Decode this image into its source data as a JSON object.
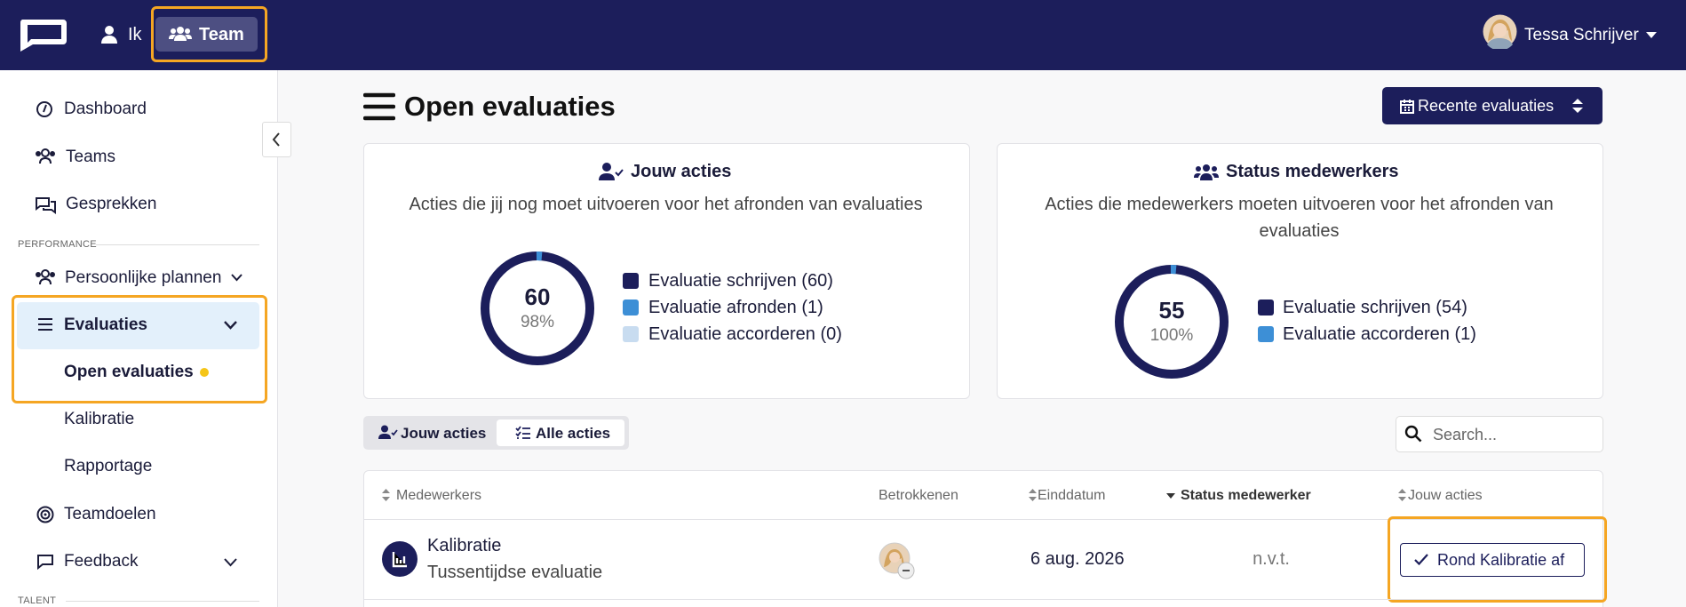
{
  "topbar": {
    "nav": [
      "Ik",
      "Team"
    ],
    "user": "Tessa Schrijver"
  },
  "sidebar": {
    "items": [
      "Dashboard",
      "Teams",
      "Gesprekken"
    ],
    "sections": [
      {
        "title": "PERFORMANCE",
        "items": [
          "Persoonlijke plannen",
          "Evaluaties",
          "Open evaluaties",
          "Kalibratie",
          "Rapportage",
          "Teamdoelen",
          "Feedback"
        ]
      },
      {
        "title": "TALENT"
      }
    ]
  },
  "page": {
    "title": "Open evaluaties",
    "button": "Recente evaluaties"
  },
  "cards": [
    {
      "title": "Jouw acties",
      "subtitle": "Acties die jij nog moet uitvoeren voor het afronden van evaluaties",
      "count": 60,
      "percent": "98%",
      "legend": [
        "Evaluatie schrijven (60)",
        "Evaluatie afronden (1)",
        "Evaluatie accorderen (0)"
      ]
    },
    {
      "title": "Status medewerkers",
      "subtitle": "Acties die medewerkers moeten uitvoeren voor het afronden van evaluaties",
      "count": 55,
      "percent": "100%",
      "legend": [
        "Evaluatie schrijven (54)",
        "Evaluatie accorderen (1)"
      ]
    }
  ],
  "tabs": [
    "Jouw acties",
    "Alle acties"
  ],
  "search": "Search...",
  "table": {
    "headers": [
      "Medewerkers",
      "Betrokkenen",
      "Einddatum",
      "Status medewerker",
      "Jouw acties"
    ],
    "rows": [
      {
        "name": "Kalibratie",
        "type": "Tussentijdse evaluatie",
        "end_date": "6 aug. 2026",
        "status": "n.v.t.",
        "action": "Rond Kalibratie af"
      }
    ]
  }
}
